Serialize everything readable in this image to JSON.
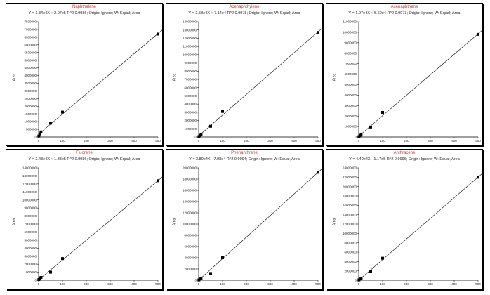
{
  "chart_data": [
    {
      "type": "scatter",
      "title": "Naphthalene",
      "equation": "Y = 1.34e4X + 2.07e5 R^2 0.9986; Origin: Ignore; W: Equal; Area",
      "ylabel": "Area",
      "xlim": [
        0,
        500
      ],
      "ylim": [
        0,
        7500000
      ],
      "xticks": [
        0,
        100,
        200,
        300,
        400,
        500
      ],
      "yticks": [
        0,
        500000,
        1000000,
        1500000,
        2000000,
        2500000,
        3000000,
        3500000,
        4000000,
        4500000,
        5000000,
        5500000,
        6000000,
        6500000,
        7000000,
        7500000
      ],
      "series": [
        {
          "x": [
            1,
            5,
            10,
            50,
            100,
            500
          ],
          "y": [
            60000,
            200000,
            330000,
            900000,
            1620000,
            6700000
          ]
        }
      ]
    },
    {
      "type": "scatter",
      "title": "Acenaphthylene",
      "equation": "Y = 2.58e4X + 7.14e4 R^2 0.9978; Origin: Ignore; W: Equal; Area",
      "ylabel": "Area",
      "xlim": [
        0,
        500
      ],
      "ylim": [
        0,
        14000000
      ],
      "xticks": [
        0,
        100,
        200,
        300,
        400,
        500
      ],
      "yticks": [
        0,
        1000000,
        2000000,
        3000000,
        4000000,
        5000000,
        6000000,
        7000000,
        8000000,
        9000000,
        10000000,
        11000000,
        12000000,
        13000000,
        14000000
      ],
      "series": [
        {
          "x": [
            1,
            5,
            10,
            50,
            100,
            500
          ],
          "y": [
            40000,
            170000,
            300000,
            1300000,
            3100000,
            12700000
          ]
        }
      ]
    },
    {
      "type": "scatter",
      "title": "Acenaphthene",
      "equation": "Y = 1.97e4X + 5.69e4 R^2 0.9973; Origin: Ignore; W: Equal; Area",
      "ylabel": "Area",
      "xlim": [
        0,
        500
      ],
      "ylim": [
        0,
        11000000
      ],
      "xticks": [
        0,
        100,
        200,
        300,
        400,
        500
      ],
      "yticks": [
        0,
        1000000,
        2000000,
        3000000,
        4000000,
        5000000,
        6000000,
        7000000,
        8000000,
        9000000,
        10000000,
        11000000
      ],
      "series": [
        {
          "x": [
            1,
            5,
            10,
            50,
            100,
            500
          ],
          "y": [
            30000,
            130000,
            240000,
            950000,
            2350000,
            9800000
          ]
        }
      ]
    },
    {
      "type": "scatter",
      "title": "Fluorene",
      "equation": "Y = 2.48e4X + 1.33e5 R^2 0.9986; Origin: Ignore; W: Equal; Area",
      "ylabel": "Area",
      "xlim": [
        0,
        500
      ],
      "ylim": [
        0,
        14000000
      ],
      "xticks": [
        0,
        100,
        200,
        300,
        400,
        500
      ],
      "yticks": [
        0,
        1000000,
        2000000,
        3000000,
        4000000,
        5000000,
        6000000,
        7000000,
        8000000,
        9000000,
        10000000,
        11000000,
        12000000,
        13000000,
        14000000
      ],
      "series": [
        {
          "x": [
            1,
            5,
            10,
            50,
            100,
            500
          ],
          "y": [
            80000,
            220000,
            350000,
            1000000,
            2700000,
            12400000
          ]
        }
      ]
    },
    {
      "type": "scatter",
      "title": "Phenanthrene",
      "equation": "Y = 3.80e4X - 7.08e4 R^2 0.9994; Origin: Ignore; W: Equal; Area",
      "ylabel": "Area",
      "xlim": [
        0,
        500
      ],
      "ylim": [
        0,
        20000000
      ],
      "xticks": [
        0,
        100,
        200,
        300,
        400,
        500
      ],
      "yticks": [
        0,
        2000000,
        4000000,
        6000000,
        8000000,
        10000000,
        12000000,
        14000000,
        16000000,
        18000000,
        20000000
      ],
      "series": [
        {
          "x": [
            1,
            5,
            10,
            50,
            100,
            500
          ],
          "y": [
            50000,
            200000,
            380000,
            1200000,
            4000000,
            19200000
          ]
        }
      ]
    },
    {
      "type": "scatter",
      "title": "Anthracene",
      "equation": "Y = 4.40e4X - 1.17e5 R^2 0.9996; Origin: Ignore; W: Equal; Area",
      "ylabel": "Area",
      "xlim": [
        0,
        500
      ],
      "ylim": [
        0,
        24000000
      ],
      "xticks": [
        0,
        100,
        200,
        300,
        400,
        500
      ],
      "yticks": [
        0,
        2000000,
        4000000,
        6000000,
        8000000,
        10000000,
        12000000,
        14000000,
        16000000,
        18000000,
        20000000,
        22000000,
        24000000
      ],
      "series": [
        {
          "x": [
            1,
            5,
            10,
            50,
            100,
            500
          ],
          "y": [
            60000,
            250000,
            420000,
            1800000,
            4700000,
            22000000
          ]
        }
      ]
    }
  ]
}
